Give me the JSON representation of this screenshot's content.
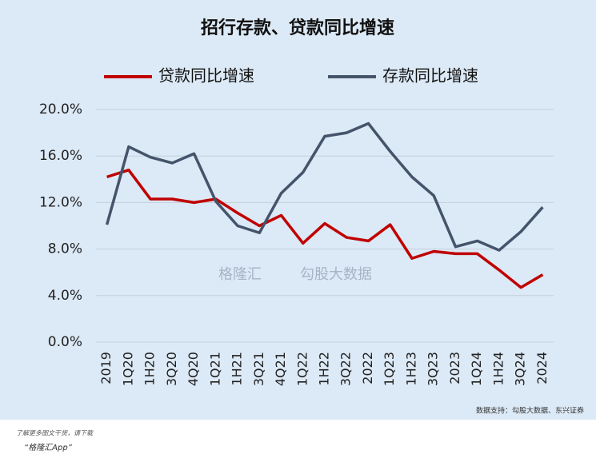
{
  "chart_data": {
    "type": "line",
    "title": "招行存款、贷款同比增速",
    "categories": [
      "2019",
      "1Q20",
      "1H20",
      "3Q20",
      "4Q20",
      "1Q21",
      "1H21",
      "3Q21",
      "4Q21",
      "1Q22",
      "1H22",
      "3Q22",
      "2022",
      "1Q23",
      "1H23",
      "3Q23",
      "2023",
      "1Q24",
      "1H24",
      "3Q24",
      "2024"
    ],
    "series": [
      {
        "name": "贷款同比增速",
        "color": "#c00000",
        "values": [
          14.2,
          14.8,
          12.3,
          12.3,
          12.0,
          12.3,
          11.1,
          10.0,
          10.9,
          8.5,
          10.2,
          9.0,
          8.7,
          10.1,
          7.2,
          7.8,
          7.6,
          7.6,
          6.2,
          4.7,
          5.8
        ]
      },
      {
        "name": "存款同比增速",
        "color": "#44546a",
        "values": [
          10.1,
          16.8,
          15.9,
          15.4,
          16.2,
          12.1,
          10.0,
          9.4,
          12.8,
          14.6,
          17.7,
          18.0,
          18.8,
          16.4,
          14.2,
          12.6,
          8.2,
          8.7,
          7.9,
          9.5,
          11.6
        ]
      }
    ],
    "ylim": [
      0,
      20
    ],
    "yticks": [
      {
        "value": 0,
        "label": "0.0%"
      },
      {
        "value": 4,
        "label": "4.0%"
      },
      {
        "value": 8,
        "label": "8.0%"
      },
      {
        "value": 12,
        "label": "12.0%"
      },
      {
        "value": 16,
        "label": "16.0%"
      },
      {
        "value": 20,
        "label": "20.0%"
      }
    ],
    "grid": true,
    "watermark": "格隆汇",
    "watermark2": "勾股大数据",
    "source": "数据支持：勾股大数据、东兴证券"
  },
  "footer": {
    "line1": "了解更多图文干货，请下载",
    "line2": "“格隆汇App”"
  }
}
